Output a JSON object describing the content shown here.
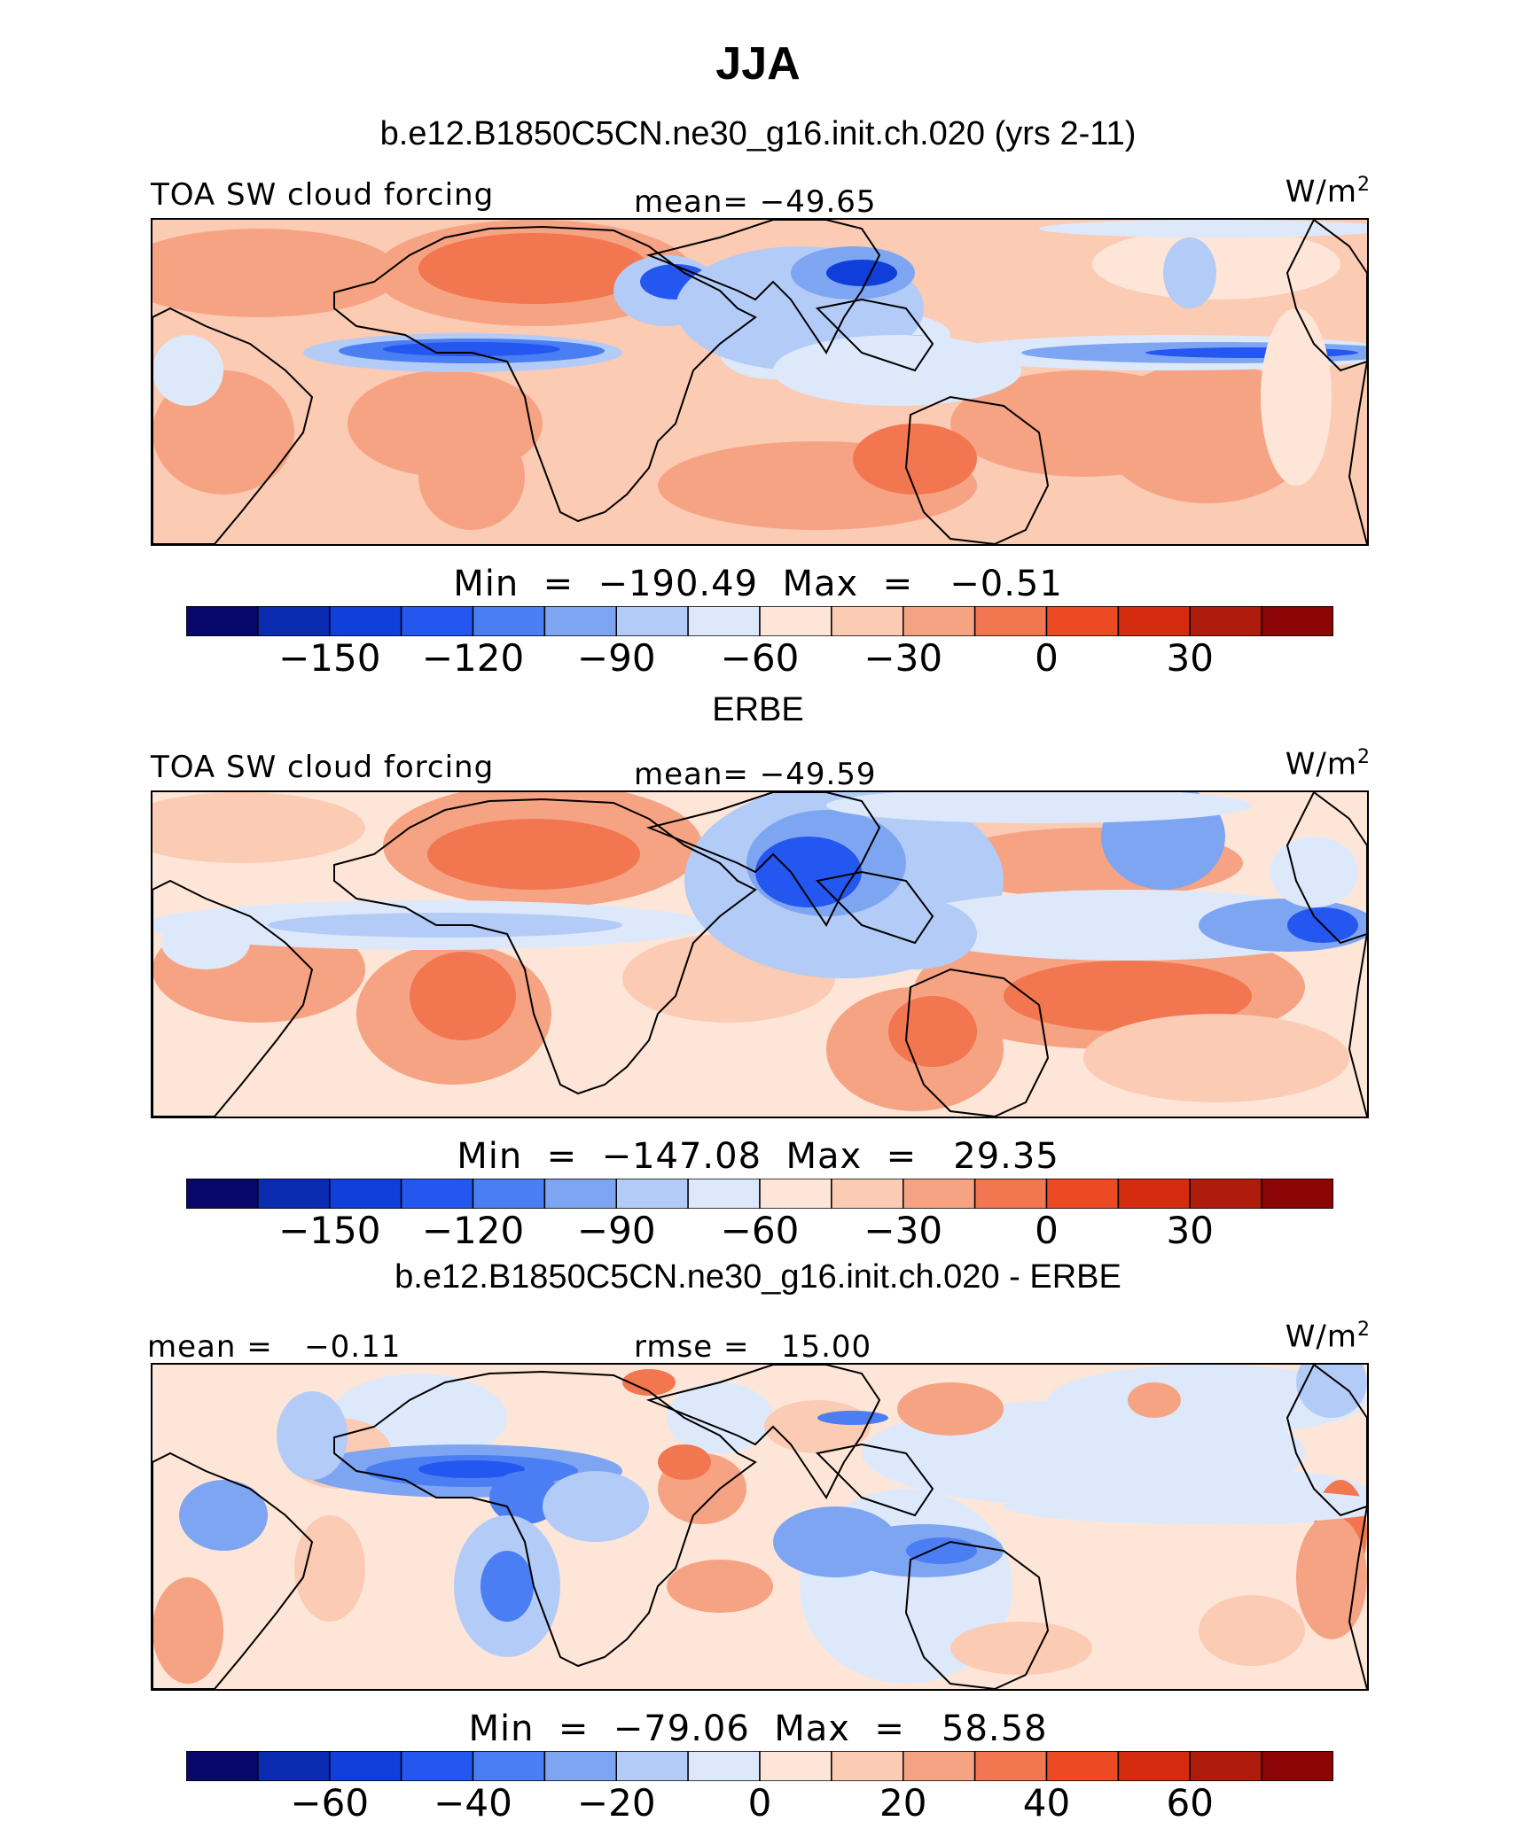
{
  "header": {
    "title": "JJA",
    "model_run": "b.e12.B1850C5CN.ne30_g16.init.ch.020 (yrs 2-11)"
  },
  "colors": {
    "levels": [
      "#08086b",
      "#0b2bb0",
      "#0f3ed8",
      "#2456f0",
      "#4a7ef2",
      "#7ea5f2",
      "#b3cbf7",
      "#dde9fb",
      "#fde6d8",
      "#fbcbb3",
      "#f6a383",
      "#f27650",
      "#ec4a23",
      "#d52b0e",
      "#b01c0c",
      "#8c0505"
    ],
    "coastline": "#000000"
  },
  "panels": [
    {
      "left_label": "TOA SW cloud forcing",
      "center_label": "mean= −49.65",
      "units_base": "W/m",
      "units_exp": "2",
      "min_max": "Min  =  −190.49  Max  =   −0.51",
      "ticks": [
        "−150",
        "−120",
        "−90",
        "−60",
        "−30",
        "0",
        "30"
      ]
    },
    {
      "title": "ERBE",
      "left_label": "TOA SW cloud forcing",
      "center_label": "mean= −49.59",
      "units_base": "W/m",
      "units_exp": "2",
      "min_max": "Min  =  −147.08  Max  =   29.35",
      "ticks": [
        "−150",
        "−120",
        "−90",
        "−60",
        "−30",
        "0",
        "30"
      ]
    },
    {
      "title": "b.e12.B1850C5CN.ne30_g16.init.ch.020 - ERBE",
      "left_label": "mean =   −0.11",
      "center_label": "rmse =   15.00",
      "units_base": "W/m",
      "units_exp": "2",
      "min_max": "Min  =  −79.06  Max  =   58.58",
      "ticks": [
        "−60",
        "−40",
        "−20",
        "0",
        "20",
        "40",
        "60"
      ]
    }
  ],
  "chart_data": [
    {
      "type": "heatmap",
      "title": "b.e12.B1850C5CN.ne30_g16.init.ch.020 (yrs 2-11)",
      "variable": "TOA SW cloud forcing",
      "units": "W/m2",
      "season": "JJA",
      "mean": -49.65,
      "min": -190.49,
      "max": -0.51,
      "colorbar_levels": [
        -165,
        -150,
        -135,
        -120,
        -105,
        -90,
        -75,
        -60,
        -45,
        -30,
        -15,
        0,
        15,
        30,
        45
      ],
      "colorbar_tick_labels": [
        -150,
        -120,
        -90,
        -60,
        -30,
        0,
        30
      ]
    },
    {
      "type": "heatmap",
      "title": "ERBE",
      "variable": "TOA SW cloud forcing",
      "units": "W/m2",
      "season": "JJA",
      "mean": -49.59,
      "min": -147.08,
      "max": 29.35,
      "colorbar_levels": [
        -165,
        -150,
        -135,
        -120,
        -105,
        -90,
        -75,
        -60,
        -45,
        -30,
        -15,
        0,
        15,
        30,
        45
      ],
      "colorbar_tick_labels": [
        -150,
        -120,
        -90,
        -60,
        -30,
        0,
        30
      ]
    },
    {
      "type": "heatmap",
      "title": "b.e12.B1850C5CN.ne30_g16.init.ch.020 - ERBE",
      "units": "W/m2",
      "season": "JJA",
      "mean": -0.11,
      "rmse": 15.0,
      "min": -79.06,
      "max": 58.58,
      "colorbar_levels": [
        -70,
        -60,
        -50,
        -40,
        -30,
        -20,
        -10,
        0,
        10,
        20,
        30,
        40,
        50,
        60,
        70
      ],
      "colorbar_tick_labels": [
        -60,
        -40,
        -20,
        0,
        20,
        40,
        60
      ]
    }
  ]
}
